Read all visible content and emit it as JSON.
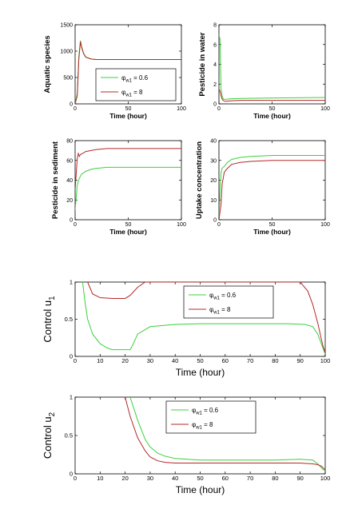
{
  "colors": {
    "series_a": "#3bd13b",
    "series_b": "#b52828",
    "axis": "#000000"
  },
  "legend_labels": {
    "series_a": {
      "sym": "φ",
      "sub": "w1",
      "rest": " = 0.6"
    },
    "series_b": {
      "sym": "φ",
      "sub": "w1",
      "rest": " = 8"
    }
  },
  "chart_data": [
    {
      "type": "line",
      "ylabel": "Aquatic species",
      "xlabel": "Time (hour)",
      "xlim": [
        0,
        100
      ],
      "ylim": [
        0,
        1500
      ],
      "xticks": [
        0,
        50,
        100
      ],
      "yticks": [
        0,
        500,
        1000,
        1500
      ],
      "legend": "bottom-right",
      "series": [
        {
          "key": "series_a",
          "x": [
            0,
            2,
            3.5,
            5,
            6,
            8,
            10,
            15,
            20,
            30,
            50,
            100
          ],
          "y": [
            0,
            200,
            900,
            1200,
            1100,
            960,
            890,
            850,
            840,
            840,
            840,
            840
          ]
        },
        {
          "key": "series_b",
          "x": [
            0,
            2,
            3.5,
            5,
            6,
            8,
            10,
            15,
            20,
            30,
            50,
            100
          ],
          "y": [
            0,
            150,
            850,
            1180,
            1080,
            950,
            885,
            850,
            840,
            840,
            840,
            840
          ]
        }
      ]
    },
    {
      "type": "line",
      "ylabel": "Pesticide in water",
      "xlabel": "Time (hour)",
      "xlim": [
        0,
        100
      ],
      "ylim": [
        0,
        8
      ],
      "xticks": [
        0,
        50,
        100
      ],
      "yticks": [
        0,
        2,
        4,
        6,
        8
      ],
      "series": [
        {
          "key": "series_a",
          "x": [
            0,
            1,
            2,
            3,
            4,
            6,
            10,
            20,
            50,
            100
          ],
          "y": [
            7.0,
            6.5,
            1.5,
            0.8,
            0.5,
            0.45,
            0.5,
            0.55,
            0.6,
            0.65
          ]
        },
        {
          "key": "series_b",
          "x": [
            0,
            1,
            2,
            3,
            4,
            6,
            10,
            20,
            50,
            100
          ],
          "y": [
            1.5,
            1.3,
            0.8,
            0.5,
            0.35,
            0.25,
            0.3,
            0.35,
            0.35,
            0.35
          ]
        }
      ]
    },
    {
      "type": "line",
      "ylabel": "Pesticide in sediment",
      "xlabel": "Time (hour)",
      "xlim": [
        0,
        100
      ],
      "ylim": [
        0,
        80
      ],
      "xticks": [
        0,
        50,
        100
      ],
      "yticks": [
        0,
        20,
        40,
        60,
        80
      ],
      "series": [
        {
          "key": "series_a",
          "x": [
            0,
            2,
            4,
            6,
            10,
            15,
            20,
            30,
            50,
            100
          ],
          "y": [
            10,
            35,
            42,
            46,
            49,
            51,
            52,
            53,
            53,
            53
          ]
        },
        {
          "key": "series_b",
          "x": [
            0,
            2,
            3,
            4,
            5,
            7,
            10,
            20,
            30,
            50,
            100
          ],
          "y": [
            30,
            62,
            67,
            64,
            66,
            67,
            69,
            71,
            72,
            72,
            72
          ]
        }
      ]
    },
    {
      "type": "line",
      "ylabel": "Uptake concentration",
      "xlabel": "Time (hour)",
      "xlim": [
        0,
        100
      ],
      "ylim": [
        0,
        40
      ],
      "xticks": [
        0,
        50,
        100
      ],
      "yticks": [
        0,
        10,
        20,
        30,
        40
      ],
      "series": [
        {
          "key": "series_a",
          "x": [
            0,
            1,
            2,
            3,
            5,
            8,
            12,
            20,
            30,
            50,
            100
          ],
          "y": [
            0,
            15,
            24,
            26,
            27,
            29,
            30.5,
            31.5,
            32,
            32.5,
            32.5
          ]
        },
        {
          "key": "series_b",
          "x": [
            0,
            2,
            3,
            5,
            8,
            12,
            20,
            30,
            50,
            100
          ],
          "y": [
            0,
            8,
            18,
            24,
            26,
            28,
            29,
            29.5,
            30,
            30
          ]
        }
      ]
    },
    {
      "type": "line",
      "ylabel": {
        "main": "Control u",
        "sub": "1"
      },
      "xlabel": "Time (hour)",
      "xlim": [
        0,
        100
      ],
      "ylim": [
        0,
        1
      ],
      "xticks": [
        0,
        10,
        20,
        30,
        40,
        50,
        60,
        70,
        80,
        90,
        100
      ],
      "yticks": [
        0,
        0.5,
        1
      ],
      "legend": "top-center",
      "series": [
        {
          "key": "series_a",
          "x": [
            3,
            4,
            5,
            7,
            10,
            13,
            15,
            22,
            23,
            25,
            30,
            40,
            50,
            70,
            85,
            92,
            95,
            97,
            99,
            100
          ],
          "y": [
            1,
            0.72,
            0.5,
            0.3,
            0.17,
            0.11,
            0.09,
            0.09,
            0.15,
            0.3,
            0.4,
            0.43,
            0.44,
            0.44,
            0.44,
            0.43,
            0.4,
            0.3,
            0.12,
            0.03
          ]
        },
        {
          "key": "series_b",
          "x": [
            5,
            7,
            10,
            15,
            20,
            22,
            25,
            28,
            88,
            90,
            93,
            95,
            97,
            99,
            100
          ],
          "y": [
            1,
            0.84,
            0.79,
            0.78,
            0.78,
            0.82,
            0.93,
            1,
            1,
            1,
            0.88,
            0.7,
            0.45,
            0.15,
            0.05
          ]
        }
      ]
    },
    {
      "type": "line",
      "ylabel": {
        "main": "Control u",
        "sub": "2"
      },
      "xlabel": "Time (hour)",
      "xlim": [
        0,
        100
      ],
      "ylim": [
        0,
        1
      ],
      "xticks": [
        0,
        10,
        20,
        30,
        40,
        50,
        60,
        70,
        80,
        90,
        100
      ],
      "yticks": [
        0,
        0.5,
        1
      ],
      "legend": "top-center",
      "series": [
        {
          "key": "series_a",
          "x": [
            22,
            25,
            28,
            30,
            33,
            36,
            40,
            45,
            50,
            60,
            70,
            80,
            90,
            95,
            97,
            99,
            100
          ],
          "y": [
            1,
            0.7,
            0.45,
            0.35,
            0.27,
            0.23,
            0.2,
            0.19,
            0.18,
            0.18,
            0.18,
            0.18,
            0.19,
            0.18,
            0.13,
            0.06,
            0.04
          ]
        },
        {
          "key": "series_b",
          "x": [
            20,
            22,
            25,
            28,
            30,
            33,
            36,
            40,
            45,
            50,
            60,
            80,
            90,
            95,
            97,
            98.5,
            100
          ],
          "y": [
            1,
            0.75,
            0.47,
            0.3,
            0.22,
            0.17,
            0.15,
            0.14,
            0.14,
            0.14,
            0.14,
            0.14,
            0.14,
            0.13,
            0.12,
            0.1,
            0.05
          ]
        }
      ]
    }
  ]
}
